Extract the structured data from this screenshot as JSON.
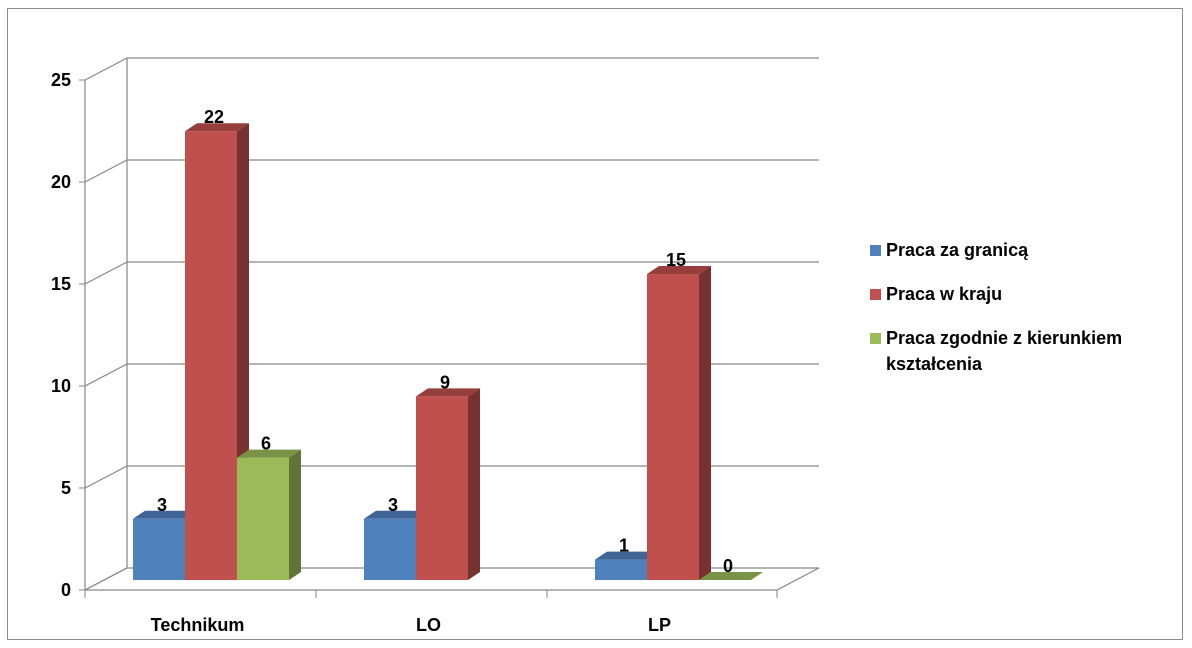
{
  "chart_data": {
    "type": "bar",
    "categories": [
      "Technikum",
      "LO",
      "LP"
    ],
    "series": [
      {
        "name": "Praca za granicą",
        "values": [
          3,
          3,
          1
        ],
        "color": "#4f81bd"
      },
      {
        "name": "Praca w kraju",
        "values": [
          22,
          9,
          15
        ],
        "color": "#c0504d"
      },
      {
        "name": "Praca zgodnie z kierunkiem kształcenia",
        "values": [
          6,
          null,
          0
        ],
        "color": "#9bbb59"
      }
    ],
    "ylim": [
      0,
      25
    ],
    "yticks": [
      0,
      5,
      10,
      15,
      20,
      25
    ],
    "grid": true,
    "legend_position": "right",
    "data_labels": true,
    "style": "3d-clustered-column"
  }
}
